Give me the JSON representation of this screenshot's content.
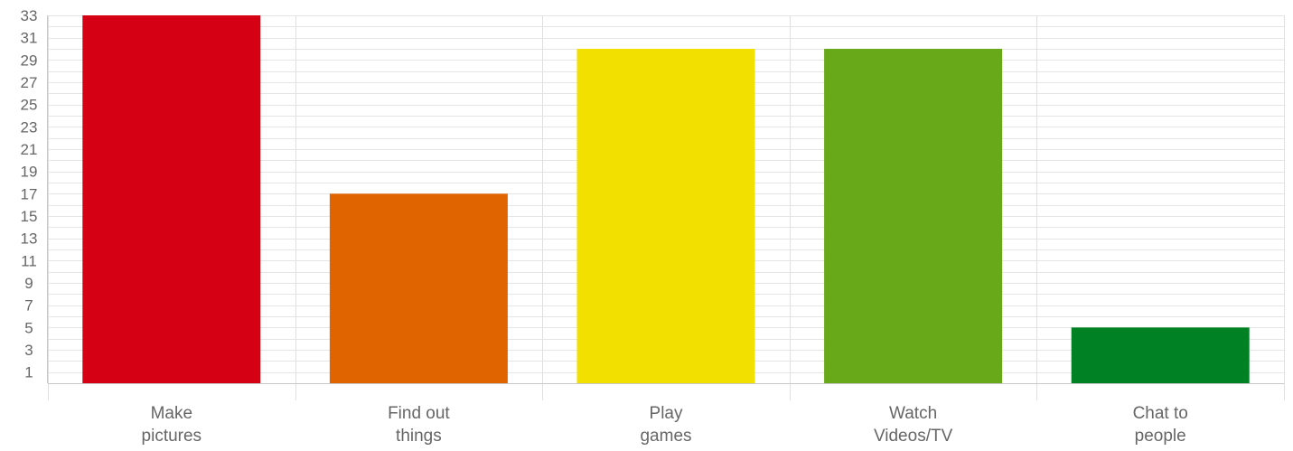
{
  "chart_data": {
    "type": "bar",
    "categories": [
      [
        "Make",
        "pictures"
      ],
      [
        "Find out",
        "things"
      ],
      [
        "Play",
        "games"
      ],
      [
        "Watch",
        "Videos/TV"
      ],
      [
        "Chat to",
        "people"
      ]
    ],
    "values": [
      33,
      17,
      30,
      30,
      5
    ],
    "colors": [
      "#d50014",
      "#e06400",
      "#f2e000",
      "#68a919",
      "#008224"
    ],
    "ylim": [
      0,
      33
    ],
    "yticks": [
      1,
      3,
      5,
      7,
      9,
      11,
      13,
      15,
      17,
      19,
      21,
      23,
      25,
      27,
      29,
      31,
      33
    ],
    "title": "",
    "xlabel": "",
    "ylabel": "",
    "grid": true,
    "legend": "none"
  }
}
